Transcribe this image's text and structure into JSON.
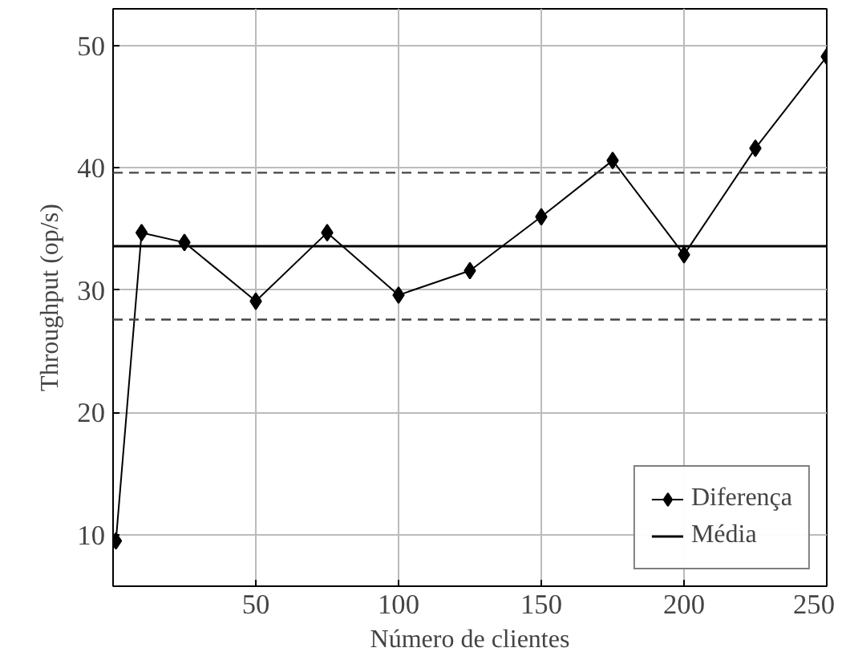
{
  "chart_data": {
    "type": "line",
    "xlabel": "Número de clientes",
    "ylabel": "Throughput (op/s)",
    "xlim": [
      0,
      250
    ],
    "ylim": [
      5.8,
      53
    ],
    "xticks": [
      50,
      100,
      150,
      200,
      250
    ],
    "yticks": [
      10,
      20,
      30,
      40,
      50
    ],
    "grid": true,
    "legend": "bottom right",
    "series": [
      {
        "name": "Diferença",
        "color": "#000000",
        "marker": "diamond",
        "x": [
          1,
          10,
          25,
          50,
          75,
          100,
          125,
          150,
          175,
          200,
          225,
          250
        ],
        "values": [
          9.5,
          34.7,
          33.9,
          29.1,
          34.7,
          29.6,
          31.6,
          36.0,
          40.6,
          32.9,
          41.6,
          49.1
        ]
      },
      {
        "name": "Média",
        "color": "#000000",
        "marker": "none",
        "x": [
          0,
          250
        ],
        "values": [
          33.6,
          33.6
        ]
      }
    ],
    "ref_lines": [
      {
        "axis": "y",
        "value": 39.6,
        "color": "#444444",
        "line_style": "dashed"
      },
      {
        "axis": "y",
        "value": 27.6,
        "color": "#444444",
        "line_style": "dashed"
      }
    ]
  }
}
